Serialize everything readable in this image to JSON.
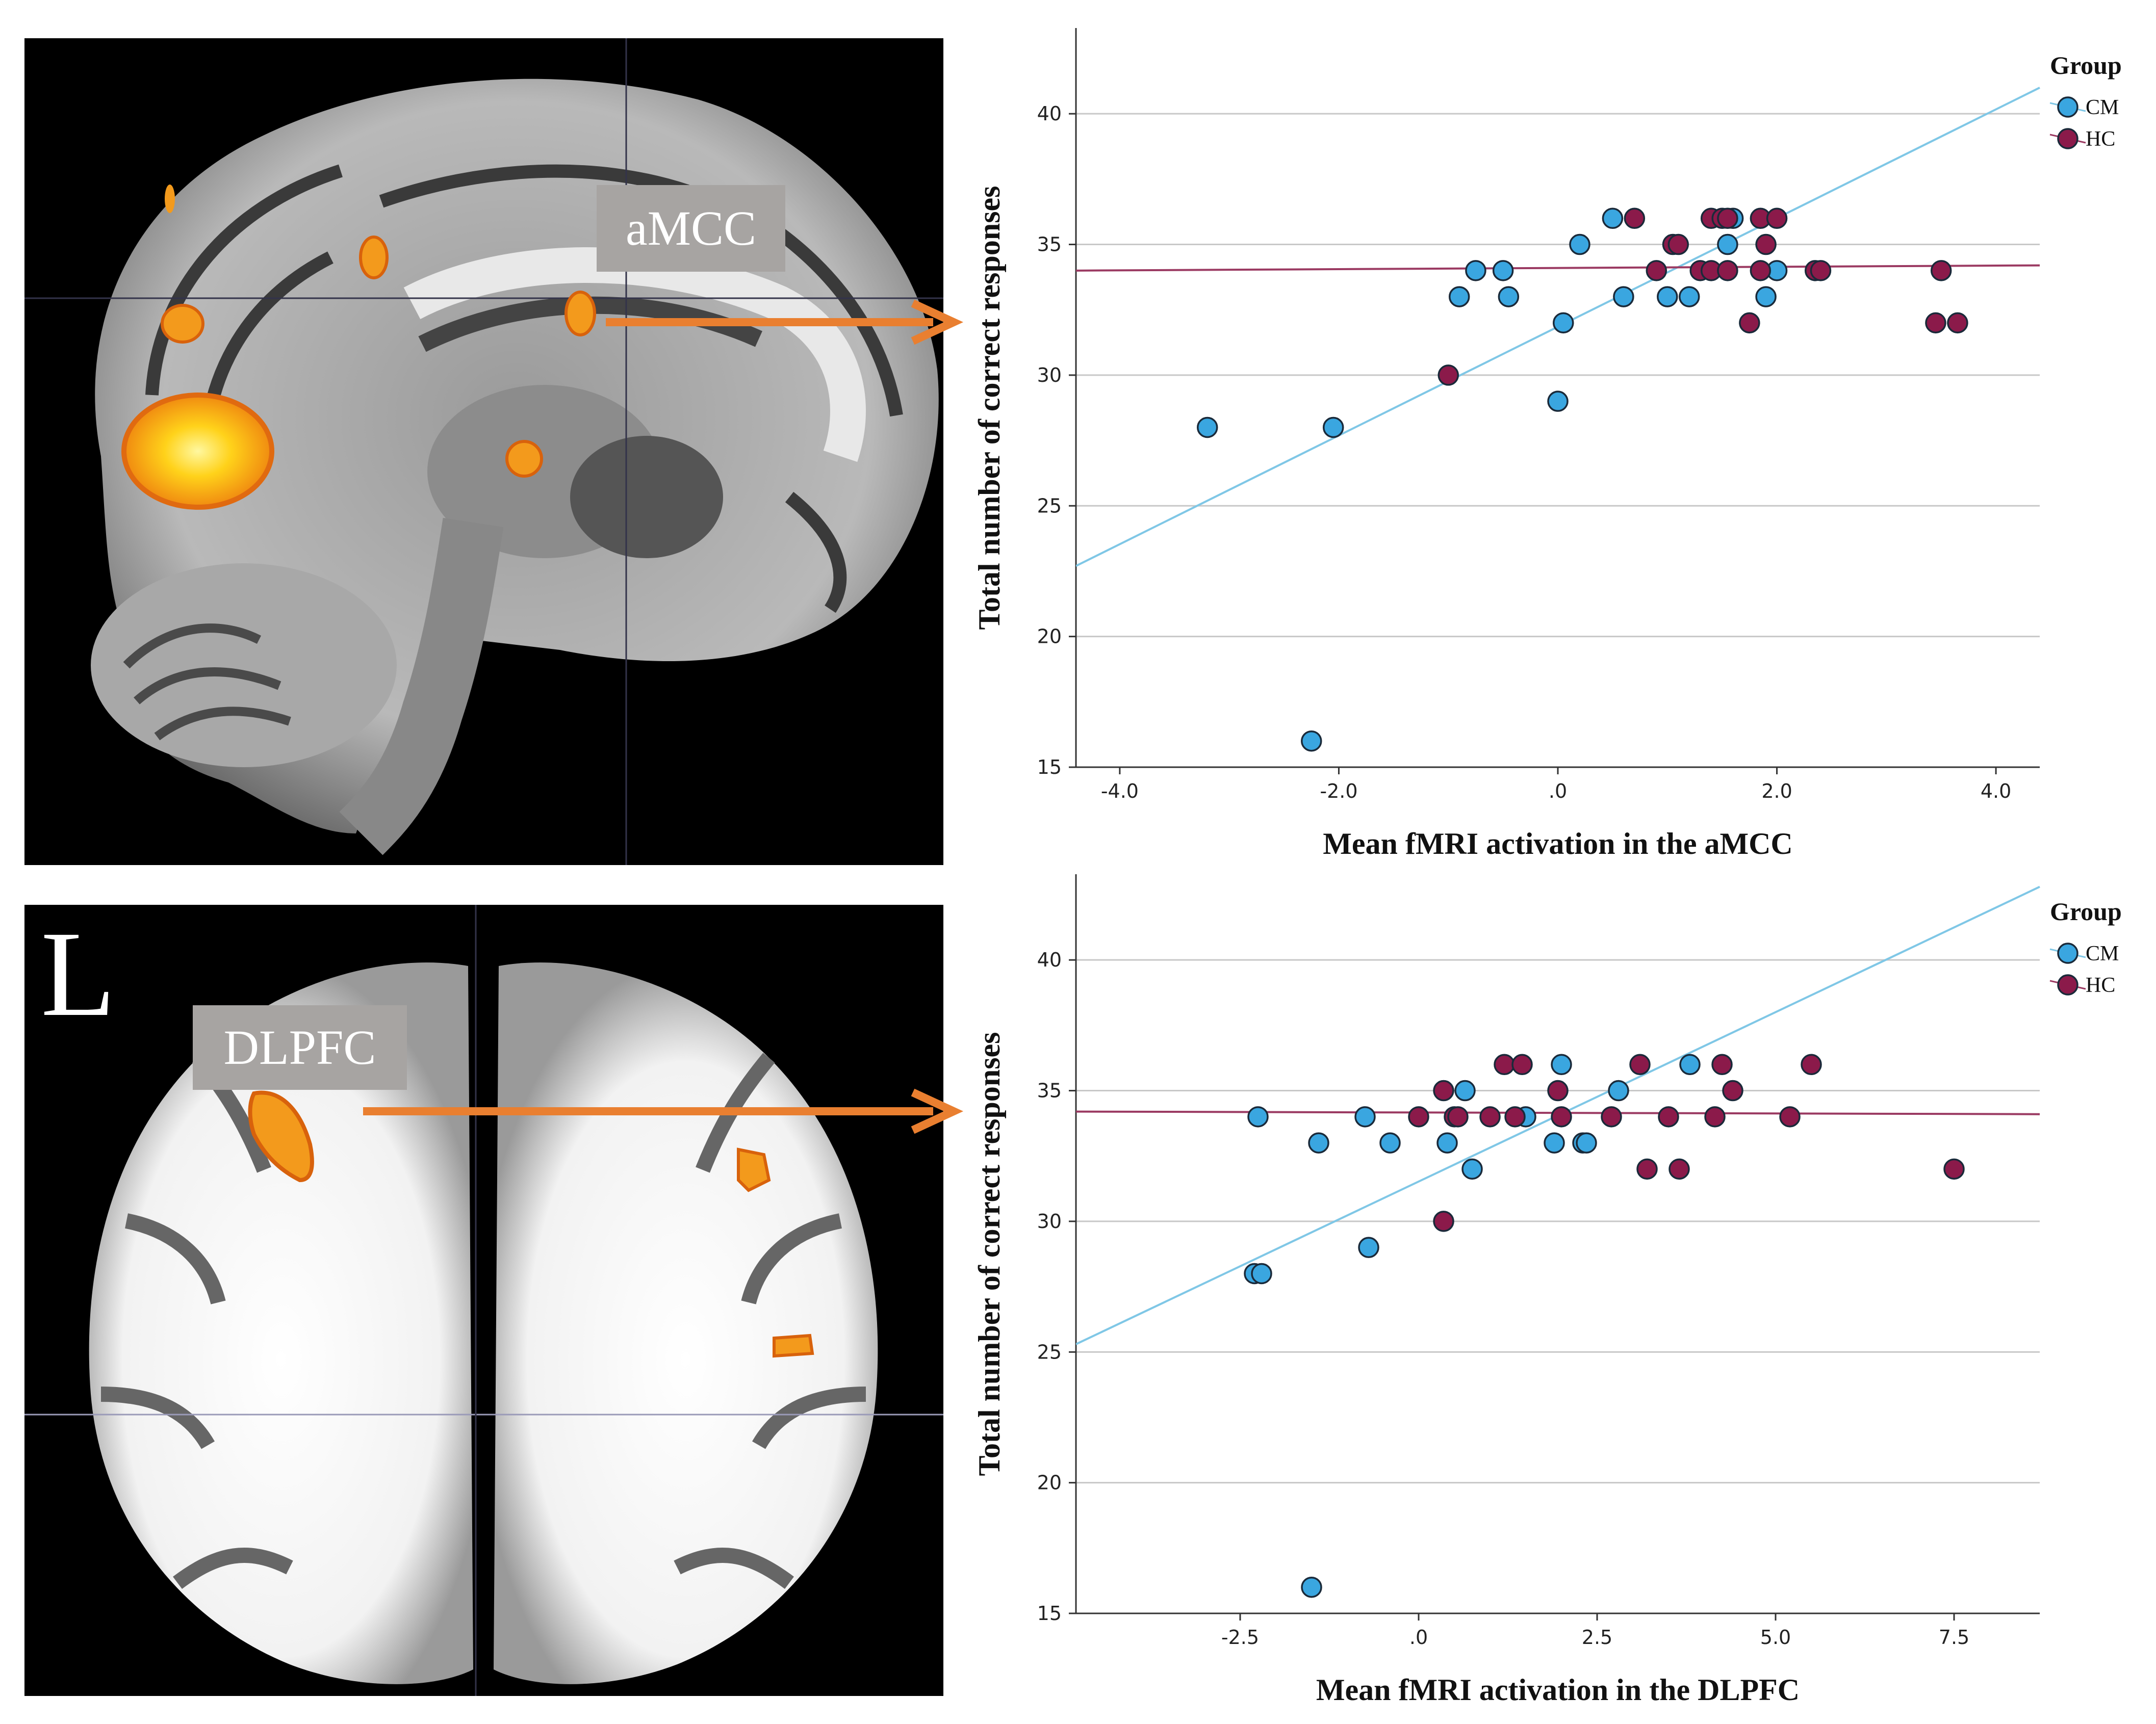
{
  "colors": {
    "cm": "#3aa6e0",
    "hc": "#8b1a4a",
    "cm_line": "#7fc7e6",
    "hc_line": "#9b3a62",
    "grid": "#c8c8c8",
    "arrow": "#e97f30",
    "activation": "#f39a1c"
  },
  "brain": {
    "top_label": "aMCC",
    "bottom_label": "DLPFC",
    "hemisphere_label": "L"
  },
  "chart_data": [
    {
      "type": "scatter",
      "xlabel": "Mean fMRI activation in the aMCC",
      "ylabel": "Total number of correct responses",
      "xlim": [
        -4.4,
        4.4
      ],
      "ylim": [
        15,
        42.5
      ],
      "xticks": [
        -4,
        -2,
        0,
        2,
        4
      ],
      "xtick_labels": [
        "-4.0",
        "-2.0",
        ".0",
        "2.0",
        "4.0"
      ],
      "yticks": [
        15,
        20,
        25,
        30,
        35,
        40
      ],
      "ytick_labels": [
        "15",
        "20",
        "25",
        "30",
        "35",
        "40"
      ],
      "grid": "horizontal",
      "legend": {
        "title": "Group",
        "entries": [
          "CM",
          "HC"
        ],
        "placement": "top-right"
      },
      "series": [
        {
          "name": "CM",
          "fit": {
            "x0": -4.4,
            "y0": 22.7,
            "x1": 4.4,
            "y1": 41.0
          },
          "points": [
            [
              -3.2,
              28
            ],
            [
              -2.25,
              16
            ],
            [
              -2.05,
              28
            ],
            [
              -0.9,
              33
            ],
            [
              -0.75,
              34
            ],
            [
              -0.5,
              34
            ],
            [
              -0.45,
              33
            ],
            [
              0.0,
              29
            ],
            [
              0.05,
              32
            ],
            [
              0.2,
              35
            ],
            [
              0.5,
              36
            ],
            [
              0.6,
              33
            ],
            [
              1.0,
              33
            ],
            [
              1.2,
              33
            ],
            [
              1.55,
              35
            ],
            [
              1.6,
              36
            ],
            [
              1.9,
              33
            ],
            [
              2.0,
              34
            ]
          ]
        },
        {
          "name": "HC",
          "fit": {
            "x0": -4.4,
            "y0": 34.0,
            "x1": 4.4,
            "y1": 34.2
          },
          "points": [
            [
              -1.0,
              30
            ],
            [
              0.7,
              36
            ],
            [
              0.9,
              34
            ],
            [
              1.05,
              35
            ],
            [
              1.1,
              35
            ],
            [
              1.3,
              34
            ],
            [
              1.4,
              34
            ],
            [
              1.4,
              36
            ],
            [
              1.5,
              36
            ],
            [
              1.55,
              34
            ],
            [
              1.55,
              36
            ],
            [
              1.75,
              32
            ],
            [
              1.85,
              34
            ],
            [
              1.85,
              36
            ],
            [
              1.9,
              35
            ],
            [
              2.0,
              36
            ],
            [
              2.35,
              34
            ],
            [
              2.4,
              34
            ],
            [
              3.45,
              32
            ],
            [
              3.5,
              34
            ],
            [
              3.65,
              32
            ]
          ]
        }
      ]
    },
    {
      "type": "scatter",
      "xlabel": "Mean fMRI activation in the DLPFC",
      "ylabel": "Total number of correct responses",
      "xlim": [
        -4.8,
        8.7
      ],
      "ylim": [
        15,
        42.5
      ],
      "xticks": [
        -2.5,
        0,
        2.5,
        5,
        7.5
      ],
      "xtick_labels": [
        "-2.5",
        ".0",
        "2.5",
        "5.0",
        "7.5"
      ],
      "yticks": [
        15,
        20,
        25,
        30,
        35,
        40
      ],
      "ytick_labels": [
        "15",
        "20",
        "25",
        "30",
        "35",
        "40"
      ],
      "grid": "horizontal",
      "legend": {
        "title": "Group",
        "entries": [
          "CM",
          "HC"
        ],
        "placement": "top-right"
      },
      "series": [
        {
          "name": "CM",
          "fit": {
            "x0": -4.8,
            "y0": 25.3,
            "x1": 8.7,
            "y1": 42.8
          },
          "points": [
            [
              -2.3,
              28
            ],
            [
              -2.2,
              28
            ],
            [
              -2.25,
              34
            ],
            [
              -1.5,
              16
            ],
            [
              -1.4,
              33
            ],
            [
              -0.75,
              34
            ],
            [
              -0.7,
              29
            ],
            [
              -0.4,
              33
            ],
            [
              0.4,
              33
            ],
            [
              0.65,
              35
            ],
            [
              0.75,
              32
            ],
            [
              1.5,
              34
            ],
            [
              1.9,
              33
            ],
            [
              2.0,
              36
            ],
            [
              2.3,
              33
            ],
            [
              2.35,
              33
            ],
            [
              2.8,
              35
            ],
            [
              3.8,
              36
            ]
          ]
        },
        {
          "name": "HC",
          "fit": {
            "x0": -4.8,
            "y0": 34.2,
            "x1": 8.7,
            "y1": 34.1
          },
          "points": [
            [
              0.0,
              34
            ],
            [
              0.35,
              30
            ],
            [
              0.35,
              35
            ],
            [
              0.5,
              34
            ],
            [
              0.55,
              34
            ],
            [
              1.0,
              34
            ],
            [
              1.2,
              36
            ],
            [
              1.35,
              34
            ],
            [
              1.45,
              36
            ],
            [
              1.95,
              35
            ],
            [
              2.0,
              34
            ],
            [
              2.7,
              34
            ],
            [
              3.1,
              36
            ],
            [
              3.2,
              32
            ],
            [
              3.5,
              34
            ],
            [
              3.65,
              32
            ],
            [
              4.15,
              34
            ],
            [
              4.25,
              36
            ],
            [
              4.4,
              35
            ],
            [
              5.2,
              34
            ],
            [
              5.5,
              36
            ],
            [
              7.5,
              32
            ]
          ]
        }
      ]
    }
  ]
}
